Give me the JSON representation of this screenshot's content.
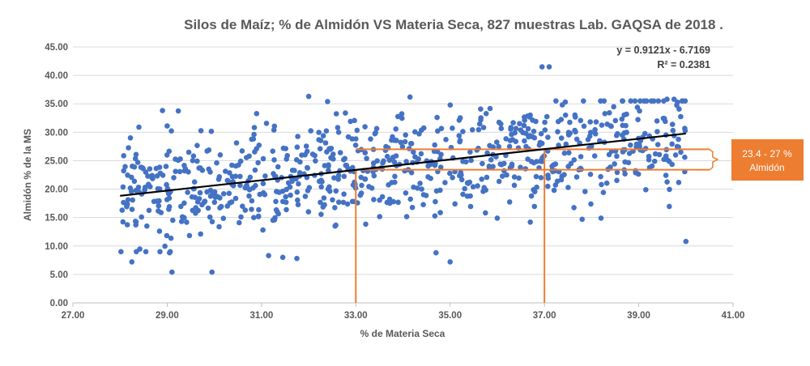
{
  "chart_data": {
    "type": "scatter",
    "title": "Silos de Maíz; % de Almidón VS Materia Seca, 827 muestras Lab. GAQSA de 2018 .",
    "xlabel": "% de Materia Seca",
    "ylabel": "Almidón % de la MS",
    "xlim": [
      27,
      41
    ],
    "ylim": [
      0,
      45
    ],
    "x_ticks": [
      "27.00",
      "29.00",
      "31.00",
      "33.00",
      "35.00",
      "37.00",
      "39.00",
      "41.00"
    ],
    "y_ticks": [
      "0.00",
      "5.00",
      "10.00",
      "15.00",
      "20.00",
      "25.00",
      "30.00",
      "35.00",
      "40.00",
      "45.00"
    ],
    "grid": "horizontal",
    "n_points": 827,
    "x_range": [
      28,
      40
    ],
    "outliers": [
      {
        "x": 29.1,
        "y": 5.4
      },
      {
        "x": 29.95,
        "y": 5.4
      },
      {
        "x": 35.0,
        "y": 7.2
      },
      {
        "x": 28.25,
        "y": 7.2
      },
      {
        "x": 31.75,
        "y": 7.8
      },
      {
        "x": 31.45,
        "y": 8.0
      },
      {
        "x": 31.15,
        "y": 8.3
      },
      {
        "x": 34.7,
        "y": 8.8
      },
      {
        "x": 29.05,
        "y": 8.8
      },
      {
        "x": 40.0,
        "y": 10.8
      },
      {
        "x": 37.1,
        "y": 41.5
      },
      {
        "x": 36.95,
        "y": 41.5
      },
      {
        "x": 34.15,
        "y": 36.2
      },
      {
        "x": 32.0,
        "y": 36.3
      },
      {
        "x": 39.6,
        "y": 35.8
      },
      {
        "x": 39.75,
        "y": 35.8
      },
      {
        "x": 37.8,
        "y": 14.7
      },
      {
        "x": 38.2,
        "y": 14.9
      },
      {
        "x": 36.7,
        "y": 14.2
      },
      {
        "x": 36.0,
        "y": 14.9
      },
      {
        "x": 39.15,
        "y": 19.9
      },
      {
        "x": 28.9,
        "y": 33.8
      },
      {
        "x": 29.0,
        "y": 31.1
      },
      {
        "x": 28.4,
        "y": 30.9
      },
      {
        "x": 32.4,
        "y": 35.4
      }
    ],
    "trendline": {
      "equation": "y = 0.9121x - 6.7169",
      "r2": "R² = 0.2381",
      "slope": 0.9121,
      "intercept": -6.7169,
      "x_from": 28,
      "x_to": 40
    },
    "annotations": [
      {
        "type": "vline",
        "x": 33,
        "y_to": 23.4
      },
      {
        "type": "vline",
        "x": 37,
        "y_to": 27
      },
      {
        "type": "hband",
        "y_from": 23.4,
        "y_to": 27,
        "x_from": 33,
        "x_to": 40.5
      },
      {
        "type": "label",
        "text": "23.4 - 27 % Almidón"
      }
    ],
    "colors": {
      "points": "#4472c4",
      "trendline": "#000000",
      "annotation": "#ed7d31",
      "label_fill": "#ed7d31",
      "label_text": "#ffffff",
      "grid": "#d9d9d9",
      "text": "#595959"
    }
  }
}
